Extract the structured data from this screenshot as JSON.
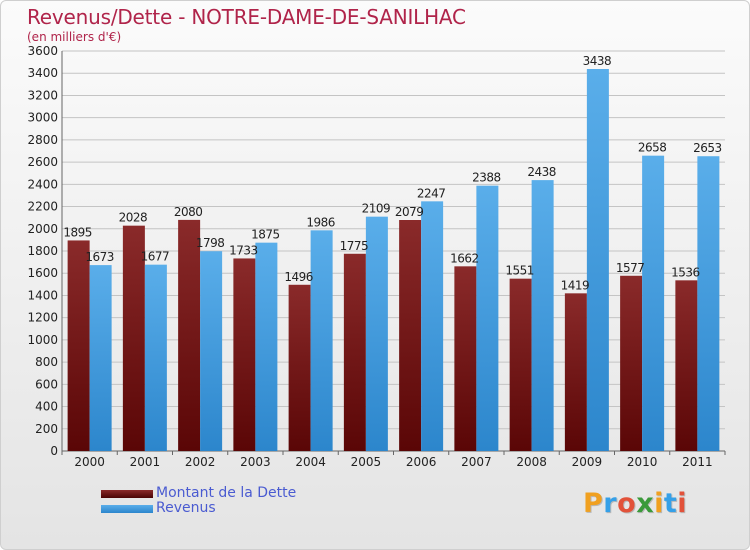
{
  "header": {
    "title": "Revenus/Dette - NOTRE-DAME-DE-SANILHAC",
    "subtitle": "(en milliers d'€)"
  },
  "legend": {
    "items": [
      {
        "label": "Montant de la Dette",
        "color": "#6e1414"
      },
      {
        "label": "Revenus",
        "color": "#3a98e0"
      }
    ]
  },
  "logo": {
    "text": "Proxiti",
    "letters": [
      {
        "char": "P",
        "color": "#f0a020"
      },
      {
        "char": "r",
        "color": "#35a0e8"
      },
      {
        "char": "o",
        "color": "#e2523a"
      },
      {
        "char": "x",
        "color": "#3a9a3a"
      },
      {
        "char": "i",
        "color": "#f0a020"
      },
      {
        "char": "t",
        "color": "#35a0e8"
      },
      {
        "char": "i",
        "color": "#e2523a"
      }
    ]
  },
  "chart_data": {
    "type": "bar",
    "categories": [
      "2000",
      "2001",
      "2002",
      "2003",
      "2004",
      "2005",
      "2006",
      "2007",
      "2008",
      "2009",
      "2010",
      "2011"
    ],
    "series": [
      {
        "name": "Montant de la Dette",
        "values": [
          1895,
          2028,
          2080,
          1733,
          1496,
          1775,
          2079,
          1662,
          1551,
          1419,
          1577,
          1536
        ]
      },
      {
        "name": "Revenus",
        "values": [
          1673,
          1677,
          1798,
          1875,
          1986,
          2109,
          2247,
          2388,
          2438,
          3438,
          2658,
          2653
        ]
      }
    ],
    "ylim": [
      0,
      3600
    ],
    "yticks": [
      0,
      200,
      400,
      600,
      800,
      1000,
      1200,
      1400,
      1600,
      1800,
      2000,
      2200,
      2400,
      2600,
      2800,
      3000,
      3200,
      3400,
      3600
    ],
    "grid": true,
    "legend_position": "bottom-left"
  }
}
